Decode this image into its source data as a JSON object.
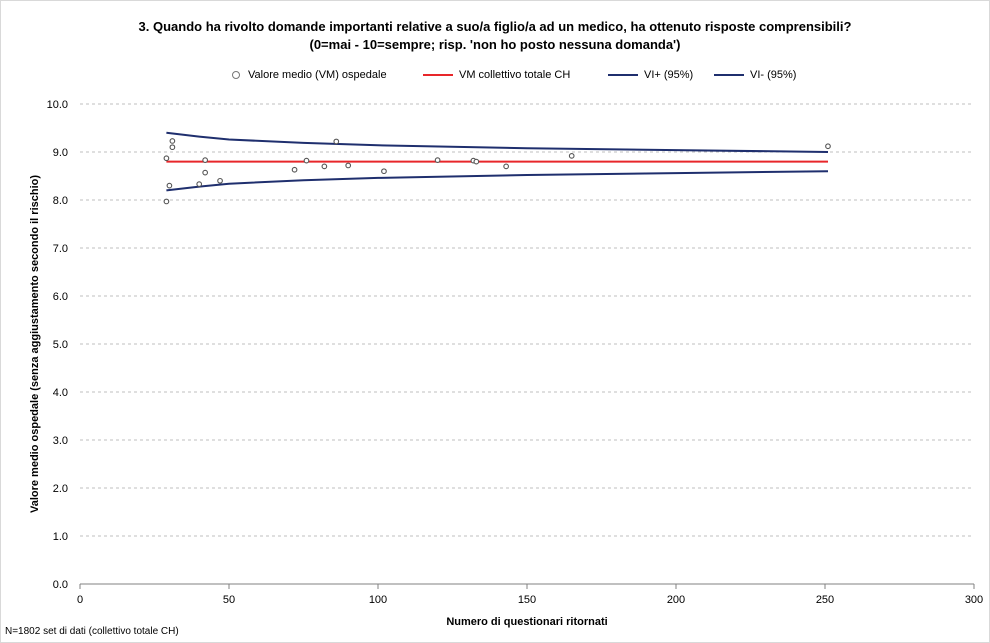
{
  "chart_data": {
    "type": "scatter",
    "title": "3. Quando ha rivolto domande importanti relative a suo/a figlio/a ad un medico, ha ottenuto risposte comprensibili?",
    "subtitle": "(0=mai - 10=sempre;  risp. 'non ho posto nessuna domanda')",
    "xlabel": "Numero di questionari ritornati",
    "ylabel": "Valore medio ospedale (senza aggiustamento secondo il rischio)",
    "xlim": [
      0,
      300
    ],
    "ylim": [
      0,
      10
    ],
    "x_ticks": [
      "0",
      "50",
      "100",
      "150",
      "200",
      "250",
      "300"
    ],
    "y_ticks": [
      "0.0",
      "1.0",
      "2.0",
      "3.0",
      "4.0",
      "5.0",
      "6.0",
      "7.0",
      "8.0",
      "9.0",
      "10.0"
    ],
    "grid": "horizontal dashed",
    "legend_position": "top",
    "series": [
      {
        "name": "Valore medio (VM) ospedale",
        "kind": "scatter",
        "color": "#808080",
        "points": [
          [
            29,
            7.97
          ],
          [
            29,
            8.87
          ],
          [
            30,
            8.3
          ],
          [
            31,
            9.23
          ],
          [
            31,
            9.1
          ],
          [
            40,
            8.33
          ],
          [
            42,
            8.83
          ],
          [
            42,
            8.57
          ],
          [
            47,
            8.4
          ],
          [
            72,
            8.63
          ],
          [
            76,
            8.82
          ],
          [
            82,
            8.7
          ],
          [
            86,
            9.22
          ],
          [
            90,
            8.72
          ],
          [
            102,
            8.6
          ],
          [
            120,
            8.83
          ],
          [
            132,
            8.82
          ],
          [
            133,
            8.8
          ],
          [
            143,
            8.7
          ],
          [
            165,
            8.92
          ],
          [
            251,
            9.12
          ]
        ]
      },
      {
        "name": "VM collettivo totale CH",
        "kind": "line",
        "color": "#e8262a",
        "points": [
          [
            29,
            8.8
          ],
          [
            251,
            8.8
          ]
        ]
      },
      {
        "name": "VI+ (95%)",
        "kind": "line",
        "color": "#1f2f6e",
        "points": [
          [
            29,
            9.4
          ],
          [
            40,
            9.32
          ],
          [
            50,
            9.26
          ],
          [
            75,
            9.19
          ],
          [
            100,
            9.14
          ],
          [
            150,
            9.08
          ],
          [
            200,
            9.04
          ],
          [
            251,
            9.0
          ]
        ]
      },
      {
        "name": "VI- (95%)",
        "kind": "line",
        "color": "#1f2f6e",
        "points": [
          [
            29,
            8.2
          ],
          [
            40,
            8.28
          ],
          [
            50,
            8.34
          ],
          [
            75,
            8.41
          ],
          [
            100,
            8.46
          ],
          [
            150,
            8.52
          ],
          [
            200,
            8.56
          ],
          [
            251,
            8.6
          ]
        ]
      }
    ]
  },
  "footnote": "N=1802 set di dati (collettivo totale CH)"
}
